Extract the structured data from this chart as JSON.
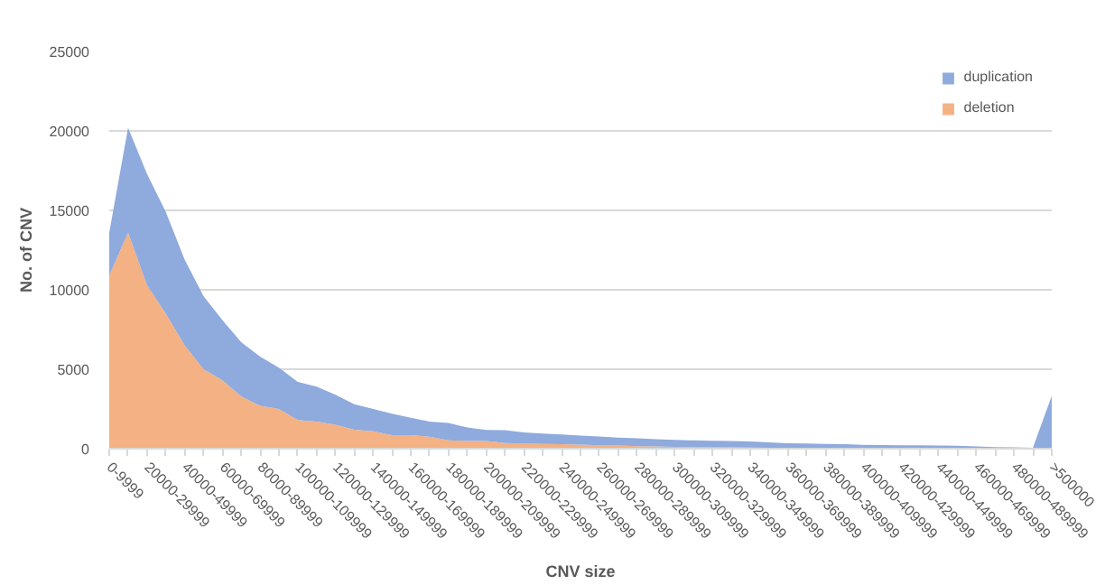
{
  "chart_data": {
    "type": "area",
    "stacked": true,
    "xlabel": "CNV size",
    "ylabel": "No. of CNV",
    "categories": [
      "0-9999",
      null,
      "20000-29999",
      null,
      "40000-49999",
      null,
      "60000-69999",
      null,
      "80000-89999",
      null,
      "100000-109999",
      null,
      "120000-129999",
      null,
      "140000-149999",
      null,
      "160000-169999",
      null,
      "180000-189999",
      null,
      "200000-209999",
      null,
      "220000-229999",
      null,
      "240000-249999",
      null,
      "260000-269999",
      null,
      "280000-289999",
      null,
      "300000-309999",
      null,
      "320000-329999",
      null,
      "340000-349999",
      null,
      "360000-369999",
      null,
      "380000-389999",
      null,
      "400000-409999",
      null,
      "420000-429999",
      null,
      "440000-449999",
      null,
      "460000-469999",
      null,
      "480000-489999",
      null,
      ">500000"
    ],
    "series": [
      {
        "name": "deletion",
        "color": "#f4b183",
        "values": [
          10900,
          13600,
          10300,
          8500,
          6500,
          5000,
          4300,
          3300,
          2700,
          2500,
          1800,
          1700,
          1500,
          1200,
          1100,
          850,
          850,
          750,
          520,
          480,
          480,
          360,
          320,
          300,
          280,
          250,
          220,
          200,
          160,
          140,
          120,
          100,
          90,
          80,
          70,
          60,
          50,
          40,
          40,
          30,
          30,
          20,
          20,
          20,
          20,
          20,
          10,
          10,
          10,
          10,
          50
        ]
      },
      {
        "name": "duplication",
        "color": "#8faadc",
        "values": [
          2700,
          6600,
          7000,
          6400,
          5400,
          4600,
          3800,
          3400,
          3100,
          2600,
          2400,
          2200,
          1900,
          1600,
          1400,
          1350,
          1100,
          950,
          1100,
          850,
          700,
          800,
          700,
          650,
          620,
          570,
          540,
          500,
          490,
          460,
          440,
          420,
          410,
          400,
          390,
          340,
          290,
          280,
          260,
          250,
          210,
          210,
          200,
          190,
          180,
          160,
          130,
          90,
          70,
          50,
          3270
        ]
      }
    ],
    "ylim": [
      0,
      25000
    ],
    "yticks": [
      0,
      5000,
      10000,
      15000,
      20000,
      25000
    ],
    "grid": "y",
    "legend": "top right"
  }
}
